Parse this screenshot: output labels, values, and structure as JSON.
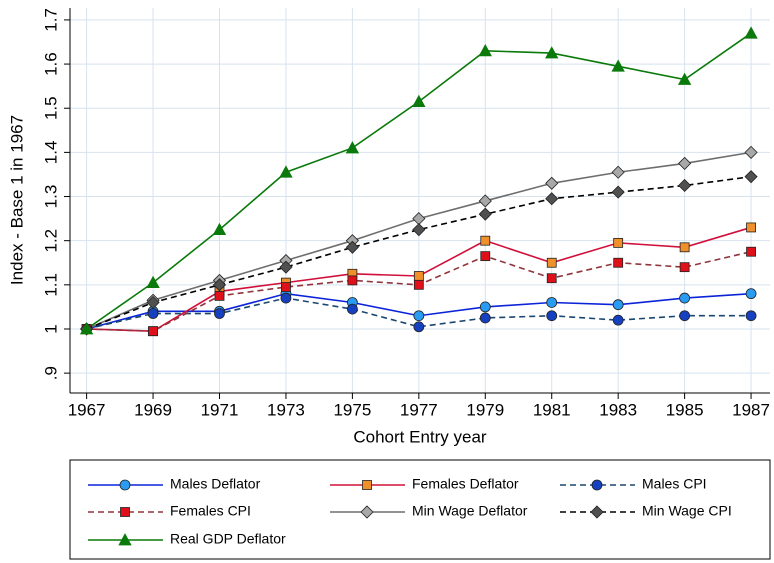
{
  "chart_data": {
    "type": "line",
    "x_label": "Cohort Entry year",
    "y_label": "Index - Base 1 in 1967",
    "x": [
      1967,
      1969,
      1971,
      1973,
      1975,
      1977,
      1979,
      1981,
      1983,
      1985,
      1987
    ],
    "xlim": [
      1966.5,
      1987.57
    ],
    "xticks": [
      1967,
      1969,
      1971,
      1973,
      1975,
      1977,
      1979,
      1981,
      1983,
      1985,
      1987
    ],
    "ylim": [
      0.855,
      1.727
    ],
    "yticks": [
      {
        "value": 0.9,
        "label": ".9"
      },
      1,
      1.1,
      1.2,
      1.3,
      1.4,
      1.5,
      1.6,
      1.7
    ],
    "grid": true,
    "legend": "bottom",
    "series": [
      {
        "name": "Males Deflator",
        "color": "#0b24d8",
        "marker": "circle",
        "marker_fill": "#2a9bf2",
        "dash": false,
        "values": [
          1.0,
          1.04,
          1.04,
          1.08,
          1.06,
          1.03,
          1.05,
          1.06,
          1.055,
          1.07,
          1.08
        ]
      },
      {
        "name": "Females Deflator",
        "color": "#d0103a",
        "marker": "square",
        "marker_fill": "#f0902a",
        "dash": false,
        "values": [
          1.0,
          0.995,
          1.085,
          1.105,
          1.125,
          1.12,
          1.2,
          1.15,
          1.195,
          1.185,
          1.23
        ]
      },
      {
        "name": "Males CPI",
        "color": "#1a476f",
        "marker": "circle",
        "marker_fill": "#1540c0",
        "dash": true,
        "values": [
          1.0,
          1.035,
          1.035,
          1.07,
          1.045,
          1.005,
          1.025,
          1.03,
          1.02,
          1.03,
          1.03
        ]
      },
      {
        "name": "Females CPI",
        "color": "#90353b",
        "marker": "square",
        "marker_fill": "#e0101a",
        "dash": true,
        "values": [
          1.0,
          0.995,
          1.075,
          1.095,
          1.11,
          1.1,
          1.165,
          1.115,
          1.15,
          1.14,
          1.175
        ]
      },
      {
        "name": "Min Wage Deflator",
        "color": "#6e6e6e",
        "marker": "diamond",
        "marker_fill": "#a8a8a8",
        "dash": false,
        "values": [
          1.0,
          1.065,
          1.11,
          1.155,
          1.2,
          1.25,
          1.29,
          1.33,
          1.355,
          1.375,
          1.4
        ]
      },
      {
        "name": "Min Wage CPI",
        "color": "#000000",
        "marker": "diamond",
        "marker_fill": "#505050",
        "dash": true,
        "values": [
          1.0,
          1.06,
          1.1,
          1.14,
          1.185,
          1.225,
          1.26,
          1.295,
          1.31,
          1.325,
          1.345
        ]
      },
      {
        "name": "Real GDP Deflator",
        "color": "#0a7a0a",
        "marker": "triangle",
        "marker_fill": "#0a7a0a",
        "dash": false,
        "values": [
          1.0,
          1.105,
          1.225,
          1.355,
          1.41,
          1.515,
          1.63,
          1.625,
          1.595,
          1.565,
          1.67
        ]
      }
    ]
  }
}
